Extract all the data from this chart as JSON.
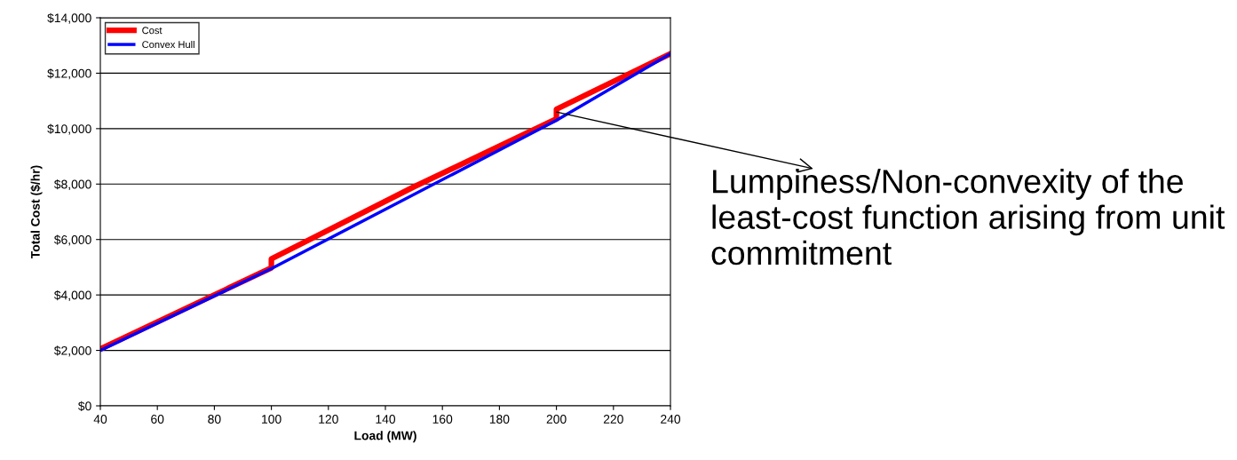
{
  "chart_data": {
    "type": "line",
    "xlabel": "Load (MW)",
    "ylabel": "Total Cost ($/hr)",
    "xlim": [
      40,
      240
    ],
    "xticks": [
      40,
      60,
      80,
      100,
      120,
      140,
      160,
      180,
      200,
      220,
      240
    ],
    "ylim": [
      0,
      14000
    ],
    "yticks": [
      {
        "value": 0,
        "label": "$0"
      },
      {
        "value": 2000,
        "label": "$2,000"
      },
      {
        "value": 4000,
        "label": "$4,000"
      },
      {
        "value": 6000,
        "label": "$6,000"
      },
      {
        "value": 8000,
        "label": "$8,000"
      },
      {
        "value": 10000,
        "label": "$10,000"
      },
      {
        "value": 12000,
        "label": "$12,000"
      },
      {
        "value": 14000,
        "label": "$14,000"
      }
    ],
    "series": [
      {
        "name": "Cost",
        "color": "#ff0000",
        "x": [
          40,
          100,
          100,
          150,
          200,
          200,
          240
        ],
        "values": [
          2050,
          4980,
          5300,
          7900,
          10350,
          10700,
          12700
        ]
      },
      {
        "name": "Convex Hull",
        "color": "#0000ff",
        "x": [
          40,
          100,
          200,
          240
        ],
        "values": [
          2000,
          4950,
          10300,
          12700
        ]
      }
    ],
    "annotations": [
      {
        "text": "Lumpiness/Non-convexity of the least-cost function arising from unit commitment",
        "x": 200,
        "y": 10600
      }
    ],
    "grid": "y",
    "legend": "top left",
    "line_style": "solid",
    "marker": "none"
  }
}
